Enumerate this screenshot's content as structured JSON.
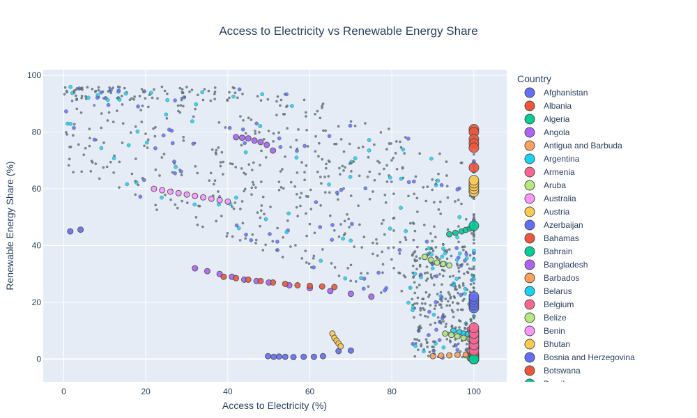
{
  "chart_data": {
    "type": "scatter",
    "title": "Access to Electricity vs Renewable Energy Share",
    "xlabel": "Access to Electricity (%)",
    "ylabel": "Renewable Energy Share (%)",
    "xlim": [
      -5,
      108
    ],
    "ylim": [
      -8,
      102
    ],
    "x_ticks": [
      0,
      20,
      40,
      60,
      80,
      100
    ],
    "y_ticks": [
      0,
      20,
      40,
      60,
      80,
      100
    ],
    "grid": true,
    "legend_position": "right",
    "legend_title": "Country",
    "series": [
      {
        "name": "Afghanistan",
        "color": "#636efa",
        "x": [
          1.6,
          4.1,
          49.8,
          51.2,
          52.5,
          54.0,
          56.0,
          58.5,
          61.0,
          63.2,
          67.0,
          70.0
        ],
        "y": [
          45.0,
          45.6,
          1.0,
          0.8,
          0.9,
          0.8,
          0.7,
          0.8,
          0.8,
          1.0,
          2.8,
          3.0
        ]
      },
      {
        "name": "Albania",
        "color": "#EF553B",
        "x": [
          100,
          100,
          100,
          100,
          100,
          100
        ],
        "y": [
          81.0,
          80.0,
          77.5,
          76.0,
          74.5,
          67.5
        ]
      },
      {
        "name": "Algeria",
        "color": "#00cc96",
        "x": [
          99.0,
          99.5,
          100,
          100,
          100,
          100
        ],
        "y": [
          0.3,
          0.2,
          0.1,
          0.1,
          0.1,
          0.2
        ]
      },
      {
        "name": "Angola",
        "color": "#ab63fa",
        "x": [
          42.0,
          43.5,
          45.0,
          46.5,
          48.0,
          49.5,
          51.0
        ],
        "y": [
          78.2,
          78.0,
          77.8,
          77.0,
          76.5,
          75.5,
          73.5
        ]
      },
      {
        "name": "Antigua and Barbuda",
        "color": "#FFA15A",
        "x": [
          90.0,
          92.0,
          94.0,
          96.0,
          98.0
        ],
        "y": [
          1.0,
          1.2,
          1.3,
          1.5,
          1.6
        ]
      },
      {
        "name": "Argentina",
        "color": "#19d3f3",
        "x": [
          95.0,
          96.5,
          97.5,
          98.5,
          99.5,
          100
        ],
        "y": [
          10.0,
          9.5,
          9.0,
          8.8,
          8.5,
          8.0
        ]
      },
      {
        "name": "Armenia",
        "color": "#FF6692",
        "x": [
          99.0,
          99.5,
          100,
          100,
          100
        ],
        "y": [
          10.5,
          9.5,
          8.0,
          7.0,
          6.5
        ]
      },
      {
        "name": "Aruba",
        "color": "#B6E880",
        "x": [
          93.0,
          94.5,
          96.0,
          97.5,
          99.0,
          100
        ],
        "y": [
          9.0,
          8.5,
          8.0,
          7.5,
          7.0,
          6.5
        ]
      },
      {
        "name": "Australia",
        "color": "#FF97FF",
        "x": [
          100,
          100,
          100,
          100,
          100
        ],
        "y": [
          8.0,
          8.5,
          9.0,
          9.5,
          10.0
        ]
      },
      {
        "name": "Austria",
        "color": "#FECB52",
        "x": [
          100,
          100,
          100,
          100,
          100
        ],
        "y": [
          59.0,
          60.0,
          61.0,
          62.0,
          63.0
        ]
      },
      {
        "name": "Azerbaijan",
        "color": "#636efa",
        "x": [
          99.0,
          99.5,
          100,
          100,
          100
        ],
        "y": [
          2.5,
          2.0,
          1.8,
          1.5,
          1.2
        ]
      },
      {
        "name": "Bahamas",
        "color": "#EF553B",
        "x": [
          100,
          100,
          100,
          100,
          100
        ],
        "y": [
          1.0,
          1.2,
          1.4,
          1.6,
          1.8
        ]
      },
      {
        "name": "Bahrain",
        "color": "#00cc96",
        "x": [
          100,
          100,
          100,
          100,
          100
        ],
        "y": [
          0.0,
          0.0,
          0.0,
          0.0,
          0.0
        ]
      },
      {
        "name": "Bangladesh",
        "color": "#ab63fa",
        "x": [
          32.0,
          35.0,
          38.0,
          41.0,
          44.0,
          47.0,
          50.0,
          55.0,
          60.0,
          65.0,
          70.0,
          75.0
        ],
        "y": [
          32.0,
          31.0,
          30.0,
          29.0,
          28.0,
          27.5,
          27.0,
          26.0,
          25.0,
          24.0,
          23.0,
          22.0
        ]
      },
      {
        "name": "Barbados",
        "color": "#FFA15A",
        "x": [
          99.0,
          99.5,
          100,
          100,
          100
        ],
        "y": [
          3.0,
          3.5,
          4.0,
          4.5,
          5.0
        ]
      },
      {
        "name": "Belarus",
        "color": "#19d3f3",
        "x": [
          100,
          100,
          100,
          100,
          100
        ],
        "y": [
          4.0,
          5.0,
          6.0,
          7.0,
          8.0
        ]
      },
      {
        "name": "Belgium",
        "color": "#FF6692",
        "x": [
          100,
          100,
          100,
          100,
          100
        ],
        "y": [
          3.0,
          5.0,
          7.0,
          9.0,
          11.0
        ]
      },
      {
        "name": "Belize",
        "color": "#B6E880",
        "x": [
          88.0,
          89.5,
          91.0,
          92.5,
          94.0
        ],
        "y": [
          36.0,
          35.0,
          34.0,
          33.5,
          33.0
        ]
      },
      {
        "name": "Benin",
        "color": "#FF97FF",
        "x": [
          22.0,
          24.0,
          26.0,
          28.0,
          30.0,
          32.0,
          34.0,
          36.0,
          38.0,
          40.0
        ],
        "y": [
          60.0,
          59.5,
          59.0,
          58.5,
          58.0,
          57.5,
          57.0,
          56.5,
          56.0,
          55.5
        ]
      },
      {
        "name": "Bhutan",
        "color": "#FECB52",
        "x": [
          65.5,
          66.0,
          66.5,
          67.0,
          67.5
        ],
        "y": [
          9.0,
          7.5,
          6.5,
          5.5,
          4.5
        ]
      },
      {
        "name": "Bosnia and Herzegovina",
        "color": "#636efa",
        "x": [
          100,
          100,
          100,
          100,
          100
        ],
        "y": [
          18.0,
          19.0,
          20.0,
          21.0,
          22.0
        ]
      },
      {
        "name": "Botswana",
        "color": "#EF553B",
        "x": [
          39.0,
          42.0,
          45.0,
          48.0,
          51.0,
          54.0,
          57.0,
          60.0,
          63.0,
          66.0
        ],
        "y": [
          29.0,
          28.5,
          28.0,
          27.5,
          27.0,
          26.5,
          26.0,
          25.8,
          25.6,
          25.4
        ]
      },
      {
        "name": "Brazil",
        "color": "#00cc96",
        "x": [
          94.0,
          95.5,
          97.0,
          98.0,
          99.0,
          100
        ],
        "y": [
          44.0,
          44.5,
          45.0,
          45.5,
          46.0,
          47.0
        ]
      }
    ]
  }
}
